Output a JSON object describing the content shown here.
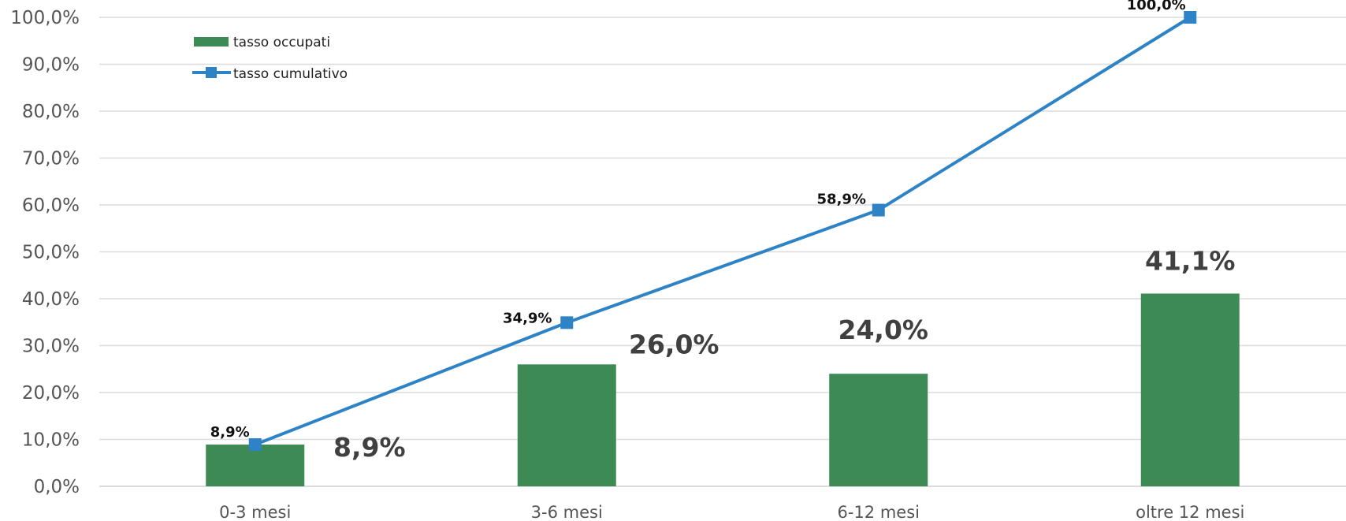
{
  "chart_data": {
    "type": "bar",
    "categories": [
      "0-3 mesi",
      "3-6 mesi",
      "6-12 mesi",
      "oltre 12 mesi"
    ],
    "series": [
      {
        "name": "tasso occupati",
        "kind": "bar",
        "color": "#3d8a55",
        "values": [
          8.9,
          26.0,
          24.0,
          41.1
        ],
        "labels": [
          "8,9%",
          "26,0%",
          "24,0%",
          "41,1%"
        ]
      },
      {
        "name": "tasso cumulativo",
        "kind": "line",
        "marker": "square",
        "color": "#2e83c6",
        "values": [
          8.9,
          34.9,
          58.9,
          100.0
        ],
        "labels": [
          "8,9%",
          "34,9%",
          "58,9%",
          "100,0%"
        ]
      }
    ],
    "y_ticks": [
      "0,0%",
      "10,0%",
      "20,0%",
      "30,0%",
      "40,0%",
      "50,0%",
      "60,0%",
      "70,0%",
      "80,0%",
      "90,0%",
      "100,0%"
    ],
    "ylim": [
      0,
      100
    ],
    "grid": true,
    "legend_position": "top-left",
    "title": "",
    "xlabel": "",
    "ylabel": ""
  }
}
